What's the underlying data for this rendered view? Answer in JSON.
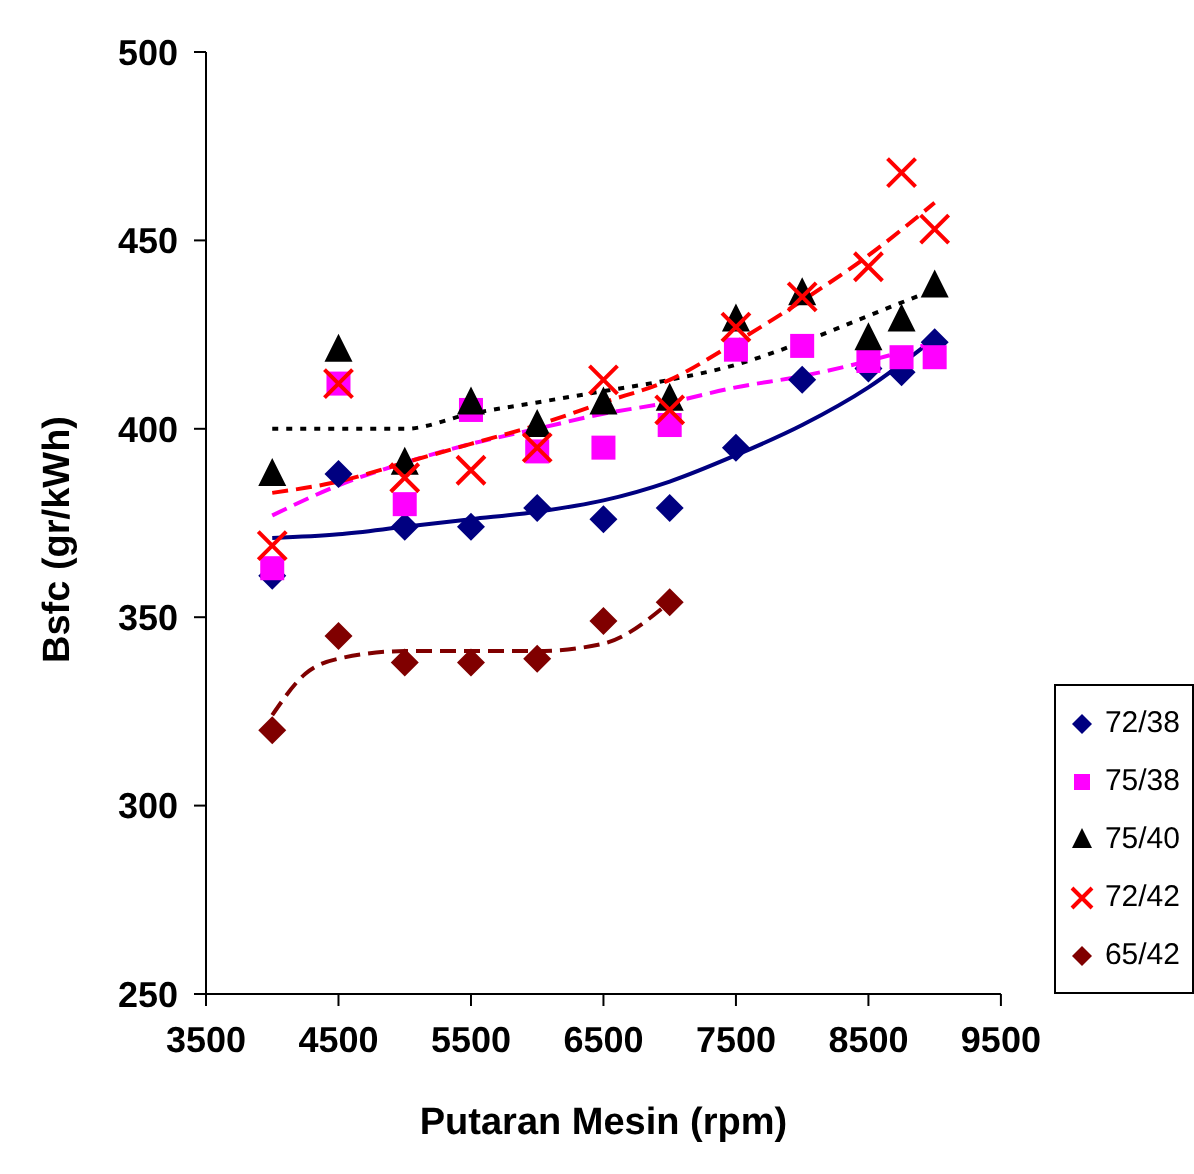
{
  "chart_data": {
    "type": "scatter",
    "xlabel": "Putaran Mesin (rpm)",
    "ylabel": "Bsfc (gr/kWh)",
    "xlim": [
      3500,
      9500
    ],
    "xticks": [
      3500,
      4500,
      5500,
      6500,
      7500,
      8500,
      9500
    ],
    "ylim": [
      250,
      500
    ],
    "yticks": [
      250,
      300,
      350,
      400,
      450,
      500
    ],
    "grid": false,
    "legend": "bottom right",
    "series": [
      {
        "name": "72/38",
        "color": "#000080",
        "marker": "diamond",
        "x": [
          4000,
          4500,
          5000,
          5500,
          6000,
          6500,
          7000,
          7500,
          8000,
          8500,
          8750,
          9000
        ],
        "values": [
          361,
          388,
          374,
          374,
          379,
          376,
          379,
          395,
          413,
          416,
          415,
          423
        ]
      },
      {
        "name": "75/38",
        "color": "#ff00ff",
        "marker": "square",
        "x": [
          4000,
          4500,
          5000,
          5500,
          6000,
          6500,
          7000,
          7500,
          8000,
          8500,
          8750,
          9000
        ],
        "values": [
          363,
          412,
          380,
          405,
          394,
          395,
          401,
          421,
          422,
          418,
          419,
          419
        ]
      },
      {
        "name": "75/40",
        "color": "#000000",
        "marker": "triangle",
        "x": [
          4000,
          4500,
          5000,
          5500,
          6000,
          6500,
          7000,
          7500,
          8000,
          8500,
          8750,
          9000
        ],
        "values": [
          388,
          421,
          391,
          407,
          401,
          407,
          408,
          429,
          436,
          424,
          429,
          438
        ]
      },
      {
        "name": "72/42",
        "color": "#ff0000",
        "marker": "cross",
        "x": [
          4000,
          4500,
          5000,
          5500,
          6000,
          6500,
          7000,
          7500,
          8000,
          8500,
          8750,
          9000
        ],
        "values": [
          369,
          412,
          387,
          389,
          395,
          413,
          405,
          427,
          435,
          443,
          468,
          453
        ]
      },
      {
        "name": "65/42",
        "color": "#800000",
        "marker": "diamond",
        "x": [
          4000,
          4500,
          5000,
          5500,
          6000,
          6500,
          7000
        ],
        "values": [
          320,
          345,
          338,
          338,
          339,
          349,
          354
        ]
      },
      {
        "type": "line",
        "color": "#000080",
        "line_style": "solid",
        "marker": "none",
        "x": [
          4000,
          4500,
          5000,
          5500,
          6000,
          6500,
          7000,
          7500,
          8000,
          8500,
          9000
        ],
        "values": [
          371,
          372,
          374,
          376,
          378,
          381,
          386,
          393,
          401,
          411,
          424
        ]
      },
      {
        "type": "line",
        "color": "#ff00ff",
        "line_style": "dashed",
        "marker": "none",
        "x": [
          4000,
          4500,
          5000,
          5500,
          6000,
          6500,
          7000,
          7500,
          8000,
          8500,
          9000
        ],
        "values": [
          377,
          385,
          391,
          396,
          400,
          404,
          407,
          411,
          414,
          418,
          423
        ]
      },
      {
        "type": "line",
        "color": "#000000",
        "line_style": "dotted",
        "marker": "none",
        "x": [
          4000,
          4500,
          5000,
          5500,
          6000,
          6500,
          7000,
          7500,
          8000,
          8500,
          9000
        ],
        "values": [
          400,
          400,
          400,
          404,
          407,
          410,
          413,
          417,
          423,
          430,
          437
        ]
      },
      {
        "type": "line",
        "color": "#ff0000",
        "line_style": "dashed",
        "marker": "none",
        "x": [
          4000,
          4500,
          5000,
          5500,
          6000,
          6500,
          7000,
          7500,
          8000,
          8500,
          9000
        ],
        "values": [
          383,
          386,
          391,
          396,
          401,
          407,
          413,
          423,
          434,
          446,
          460
        ]
      },
      {
        "type": "line",
        "color": "#800000",
        "line_style": "dashed",
        "marker": "none",
        "x": [
          4000,
          4250,
          4500,
          5000,
          5500,
          6000,
          6500,
          7000
        ],
        "values": [
          324,
          335,
          339,
          341,
          341,
          341,
          343,
          354
        ]
      }
    ]
  }
}
